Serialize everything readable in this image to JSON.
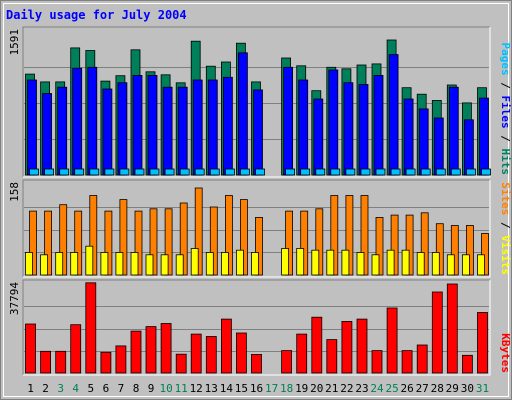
{
  "chart_data": {
    "type": "bar",
    "title": "Daily usage for July 2004",
    "days": [
      "1",
      "2",
      "3",
      "4",
      "5",
      "6",
      "7",
      "8",
      "9",
      "10",
      "11",
      "12",
      "13",
      "14",
      "15",
      "16",
      "17",
      "18",
      "19",
      "20",
      "21",
      "22",
      "23",
      "24",
      "25",
      "26",
      "27",
      "28",
      "29",
      "30",
      "31"
    ],
    "weekend_days": [
      "3",
      "4",
      "10",
      "11",
      "17",
      "18",
      "24",
      "25",
      "31"
    ],
    "panels": [
      {
        "id": "hits",
        "max_label": "1591",
        "ymax": 1591,
        "axis_label_parts": [
          "Pages",
          "Files",
          "Hits"
        ],
        "axis_label_colors": [
          "#00c0ff",
          "#0000ff",
          "#008060"
        ],
        "series": [
          {
            "name": "Hits",
            "color": "#00805a",
            "values": [
              1115,
              1029,
              1029,
              1404,
              1375,
              1038,
              1097,
              1383,
              1140,
              1107,
              1019,
              1478,
              1202,
              1248,
              1456,
              1029,
              null,
              1293,
              1206,
              931,
              1190,
              1173,
              1215,
              1228,
              1492,
              965,
              893,
              824,
              994,
              797,
              965
            ]
          },
          {
            "name": "Files",
            "color": "#0000ff",
            "values": [
              1050,
              900,
              970,
              1180,
              1190,
              950,
              1020,
              1100,
              1100,
              970,
              970,
              1050,
              1050,
              1080,
              1350,
              940,
              null,
              1190,
              1050,
              840,
              1160,
              1020,
              1000,
              1100,
              1330,
              840,
              730,
              630,
              970,
              610,
              850
            ]
          },
          {
            "name": "Pages",
            "color": "#00bfff",
            "values": [
              45,
              45,
              45,
              45,
              55,
              45,
              45,
              45,
              45,
              45,
              45,
              60,
              45,
              45,
              55,
              45,
              null,
              60,
              45,
              45,
              45,
              45,
              45,
              45,
              55,
              45,
              45,
              45,
              45,
              45,
              45
            ]
          }
        ]
      },
      {
        "id": "visits",
        "max_label": "158",
        "ymax": 158,
        "axis_label_parts": [
          "Sites",
          "Visits"
        ],
        "axis_label_colors": [
          "#ff8000",
          "#ffff00"
        ],
        "series": [
          {
            "name": "Sites",
            "color": "#ff8000",
            "values": [
              111,
              111,
              122,
              111,
              138,
              111,
              131,
              111,
              115,
              115,
              125,
              151,
              118,
              138,
              131,
              100,
              null,
              111,
              111,
              115,
              138,
              138,
              138,
              100,
              104,
              104,
              108,
              89,
              86,
              86,
              72
            ]
          },
          {
            "name": "Visits",
            "color": "#ffff00",
            "values": [
              39,
              35,
              39,
              39,
              50,
              39,
              39,
              39,
              35,
              35,
              35,
              46,
              39,
              39,
              43,
              39,
              null,
              46,
              46,
              43,
              43,
              43,
              39,
              35,
              43,
              43,
              39,
              39,
              35,
              35,
              35
            ]
          }
        ]
      },
      {
        "id": "kbytes",
        "max_label": "37794",
        "ymax": 37794,
        "axis_label_parts": [
          "KBytes"
        ],
        "axis_label_colors": [
          "#ff0000"
        ],
        "series": [
          {
            "name": "KBytes",
            "color": "#ff0000",
            "values": [
              20800,
              9200,
              9200,
              20500,
              38300,
              8800,
              11500,
              17800,
              19700,
              21000,
              8000,
              16500,
              15500,
              22900,
              17000,
              7900,
              null,
              9500,
              16500,
              23700,
              14200,
              21900,
              22900,
              9500,
              27600,
              9500,
              11900,
              34400,
              37800,
              7500,
              25700
            ]
          }
        ]
      }
    ],
    "colors": {
      "frame_bg": "#c0c0c0",
      "title": "#0000ff",
      "weekday_label": "#000000",
      "weekend_label": "#00805a",
      "grid": "#808080"
    }
  }
}
